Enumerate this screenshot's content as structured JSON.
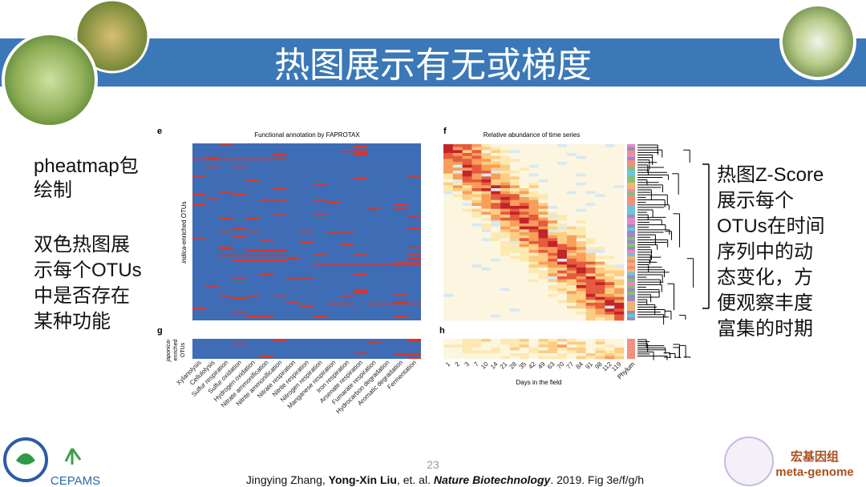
{
  "header": {
    "title": "热图展示有无或梯度"
  },
  "left_text": {
    "first": [
      "pheatmap包",
      "绘制"
    ],
    "second": [
      "双色热图展",
      "示每个OTUs",
      "中是否存在",
      "某种功能"
    ]
  },
  "right_text": [
    "热图Z-Score",
    "展示每个",
    "OTUs在时间",
    "序列中的动",
    "态变化，方",
    "便观察丰度",
    "富集的时期"
  ],
  "figure": {
    "panel_e": {
      "letter": "e",
      "title": "Functional annotation by FAPROTAX",
      "y_label_italic": "indica",
      "y_label_rest": "-enriched OTUs"
    },
    "panel_f": {
      "letter": "f",
      "title": "Relative abundance of time series"
    },
    "panel_g": {
      "letter": "g",
      "y_label": [
        "japonica-",
        "enriched",
        "OTUs"
      ]
    },
    "panel_h": {
      "letter": "h",
      "x_label": "Days in the field",
      "phylum": "Phylum"
    },
    "functions": [
      "Xylanolysis",
      "Cellulolysis",
      "Sulfur respiration",
      "Sulfur oxidation",
      "Hydrogen oxidation",
      "Nitrate ammonification",
      "Nitrite ammonification",
      "Nitrate respiration",
      "Nitrite respiration",
      "Nitrogen respiration",
      "Manganese respiration",
      "Iron respiration",
      "Arsenate respiration",
      "Fumarate respiration",
      "Hydrocarbon degradation",
      "Aromatic degradation",
      "Fermentation"
    ],
    "days": [
      1,
      2,
      3,
      7,
      10,
      14,
      21,
      28,
      35,
      42,
      49,
      63,
      70,
      77,
      84,
      91,
      98,
      112,
      119
    ]
  },
  "footer": {
    "page": "23",
    "citation": {
      "authors": "Jingying Zhang, ",
      "lead": "Yong-Xin Liu",
      "etal": ", et. al. ",
      "journal": "Nature Biotechnology",
      "rest": ". 2019. Fig 3e/f/g/h"
    },
    "logo_left": "CEPAMS",
    "logo_right": [
      "宏基因组",
      "meta-genome"
    ]
  }
}
